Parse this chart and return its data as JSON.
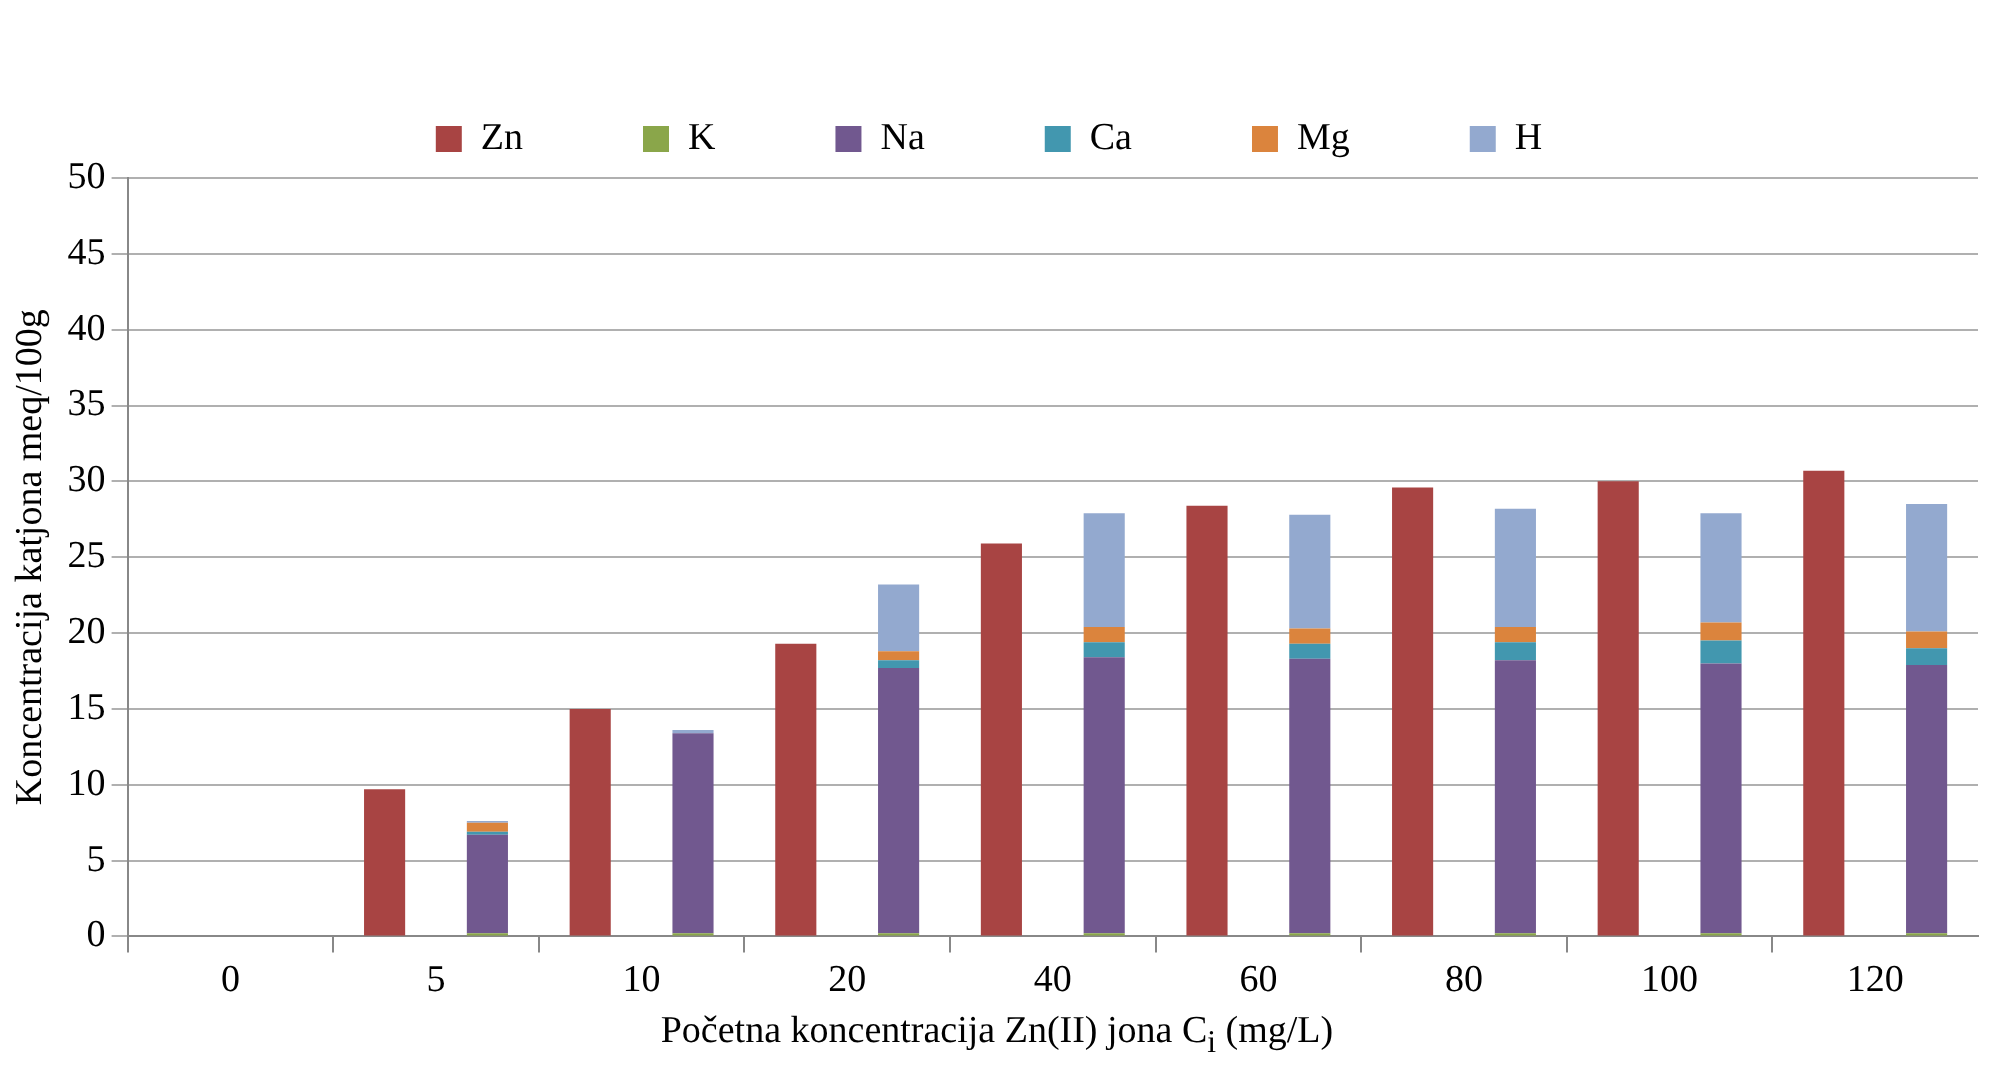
{
  "chart_data": {
    "type": "bar",
    "stacked": true,
    "xlabel": "Početna koncentracija Zn(II) jona C$_{i}$ (mg/L)",
    "ylabel": "Koncentracija katjona meq/100g",
    "categories": [
      "0",
      null,
      "5",
      null,
      "10",
      null,
      "20",
      null,
      "40",
      null,
      "60",
      null,
      "80",
      null,
      "100",
      null,
      "120",
      null
    ],
    "series": [
      {
        "name": "Zn",
        "color": "#a84443",
        "values": [
          0,
          null,
          9.7,
          null,
          15,
          null,
          19.3,
          null,
          25.9,
          null,
          28.4,
          null,
          29.6,
          null,
          30.0,
          null,
          30.7,
          null
        ]
      },
      {
        "name": "K",
        "color": "#8aa64a",
        "values": [
          null,
          0,
          null,
          0.2,
          null,
          0.2,
          null,
          0.2,
          null,
          0.2,
          null,
          0.2,
          null,
          0.2,
          null,
          0.2,
          null,
          0.2
        ]
      },
      {
        "name": "Na",
        "color": "#71588f",
        "values": [
          null,
          0,
          null,
          6.5,
          null,
          13.2,
          null,
          17.5,
          null,
          18.2,
          null,
          18.1,
          null,
          18.0,
          null,
          17.8,
          null,
          17.7
        ]
      },
      {
        "name": "Ca",
        "color": "#4297af",
        "values": [
          null,
          0,
          null,
          0.2,
          null,
          0,
          null,
          0.5,
          null,
          1.0,
          null,
          1.0,
          null,
          1.2,
          null,
          1.5,
          null,
          1.1
        ]
      },
      {
        "name": "Mg",
        "color": "#db843d",
        "values": [
          null,
          0,
          null,
          0.6,
          null,
          0,
          null,
          0.6,
          null,
          1.0,
          null,
          1.0,
          null,
          1.0,
          null,
          1.2,
          null,
          1.1
        ]
      },
      {
        "name": "H",
        "color": "#93a9cf",
        "values": [
          null,
          0,
          null,
          0.1,
          null,
          0.2,
          null,
          4.4,
          null,
          7.5,
          null,
          7.5,
          null,
          7.8,
          null,
          7.2,
          null,
          8.4
        ]
      }
    ],
    "ylim": [
      0,
      50
    ],
    "yticks": [
      0,
      5,
      10,
      15,
      20,
      25,
      30,
      35,
      40,
      45,
      50
    ],
    "grid": "y",
    "legend": "top"
  }
}
